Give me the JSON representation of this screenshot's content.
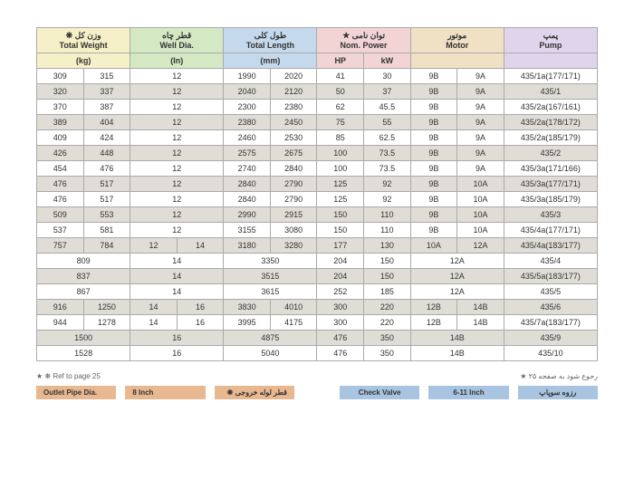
{
  "headers": {
    "weight_fa": "❋ وزن کل",
    "weight_en": "Total Weight",
    "weight_unit": "(kg)",
    "well_fa": "قطر چاه",
    "well_en": "Well Dia.",
    "well_unit": "(In)",
    "length_fa": "طول کلی",
    "length_en": "Total Length",
    "length_unit": "(mm)",
    "power_fa": "★ توان نامی",
    "power_en": "Nom. Power",
    "hp": "HP",
    "kw": "kW",
    "motor_fa": "موتور",
    "motor_en": "Motor",
    "pump_fa": "پمپ",
    "pump_en": "Pump"
  },
  "rows": [
    {
      "g": 0,
      "w1": "309",
      "w2": "315",
      "wd": "12",
      "l1": "1990",
      "l2": "2020",
      "hp": "41",
      "kw": "30",
      "m1": "9B",
      "m2": "9A",
      "p": "435/1a(177/171)"
    },
    {
      "g": 1,
      "w1": "320",
      "w2": "337",
      "wd": "12",
      "l1": "2040",
      "l2": "2120",
      "hp": "50",
      "kw": "37",
      "m1": "9B",
      "m2": "9A",
      "p": "435/1"
    },
    {
      "g": 0,
      "w1": "370",
      "w2": "387",
      "wd": "12",
      "l1": "2300",
      "l2": "2380",
      "hp": "62",
      "kw": "45.5",
      "m1": "9B",
      "m2": "9A",
      "p": "435/2a(167/161)"
    },
    {
      "g": 1,
      "w1": "389",
      "w2": "404",
      "wd": "12",
      "l1": "2380",
      "l2": "2450",
      "hp": "75",
      "kw": "55",
      "m1": "9B",
      "m2": "9A",
      "p": "435/2a(178/172)"
    },
    {
      "g": 0,
      "w1": "409",
      "w2": "424",
      "wd": "12",
      "l1": "2460",
      "l2": "2530",
      "hp": "85",
      "kw": "62.5",
      "m1": "9B",
      "m2": "9A",
      "p": "435/2a(185/179)"
    },
    {
      "g": 1,
      "w1": "426",
      "w2": "448",
      "wd": "12",
      "l1": "2575",
      "l2": "2675",
      "hp": "100",
      "kw": "73.5",
      "m1": "9B",
      "m2": "9A",
      "p": "435/2"
    },
    {
      "g": 0,
      "w1": "454",
      "w2": "476",
      "wd": "12",
      "l1": "2740",
      "l2": "2840",
      "hp": "100",
      "kw": "73.5",
      "m1": "9B",
      "m2": "9A",
      "p": "435/3a(171/166)"
    },
    {
      "g": 1,
      "w1": "476",
      "w2": "517",
      "wd": "12",
      "l1": "2840",
      "l2": "2790",
      "hp": "125",
      "kw": "92",
      "m1": "9B",
      "m2": "10A",
      "p": "435/3a(177/171)"
    },
    {
      "g": 0,
      "w1": "476",
      "w2": "517",
      "wd": "12",
      "l1": "2840",
      "l2": "2790",
      "hp": "125",
      "kw": "92",
      "m1": "9B",
      "m2": "10A",
      "p": "435/3a(185/179)"
    },
    {
      "g": 1,
      "w1": "509",
      "w2": "553",
      "wd": "12",
      "l1": "2990",
      "l2": "2915",
      "hp": "150",
      "kw": "110",
      "m1": "9B",
      "m2": "10A",
      "p": "435/3"
    },
    {
      "g": 0,
      "w1": "537",
      "w2": "581",
      "wd": "12",
      "l1": "3155",
      "l2": "3080",
      "hp": "150",
      "kw": "110",
      "m1": "9B",
      "m2": "10A",
      "p": "435/4a(177/171)"
    },
    {
      "g": 1,
      "w1": "757",
      "w2": "784",
      "wd1": "12",
      "wd2": "14",
      "l1": "3180",
      "l2": "3280",
      "hp": "177",
      "kw": "130",
      "m1": "10A",
      "m2": "12A",
      "p": "435/4a(183/177)"
    },
    {
      "g": 0,
      "wS": "809",
      "wdS": "14",
      "lS": "3350",
      "hp": "204",
      "kw": "150",
      "mS": "12A",
      "p": "435/4"
    },
    {
      "g": 1,
      "wS": "837",
      "wdS": "14",
      "lS": "3515",
      "hp": "204",
      "kw": "150",
      "mS": "12A",
      "p": "435/5a(183/177)"
    },
    {
      "g": 0,
      "wS": "867",
      "wdS": "14",
      "lS": "3615",
      "hp": "252",
      "kw": "185",
      "mS": "12A",
      "p": "435/5"
    },
    {
      "g": 1,
      "w1": "916",
      "w2": "1250",
      "wd1": "14",
      "wd2": "16",
      "l1": "3830",
      "l2": "4010",
      "hp": "300",
      "kw": "220",
      "m1": "12B",
      "m2": "14B",
      "p": "435/6"
    },
    {
      "g": 0,
      "w1": "944",
      "w2": "1278",
      "wd1": "14",
      "wd2": "16",
      "l1": "3995",
      "l2": "4175",
      "hp": "300",
      "kw": "220",
      "m1": "12B",
      "m2": "14B",
      "p": "435/7a(183/177)"
    },
    {
      "g": 1,
      "wS": "1500",
      "wdS": "16",
      "lS": "4875",
      "hp": "476",
      "kw": "350",
      "mS": "14B",
      "p": "435/9"
    },
    {
      "g": 0,
      "wS": "1528",
      "wdS": "16",
      "lS": "5040",
      "hp": "476",
      "kw": "350",
      "mS": "14B",
      "p": "435/10"
    }
  ],
  "footer": {
    "left": "★ ❋  Ref to page 25",
    "right": "★  رجوع شود به صفحه ۲۵",
    "b1": "Outlet Pipe Dia.",
    "b2": "8 Inch",
    "b3": "❋ قطر لوله خروجی",
    "b4": "Check Valve",
    "b5": "6-11 Inch",
    "b6": "رزوه سوپاپ"
  }
}
